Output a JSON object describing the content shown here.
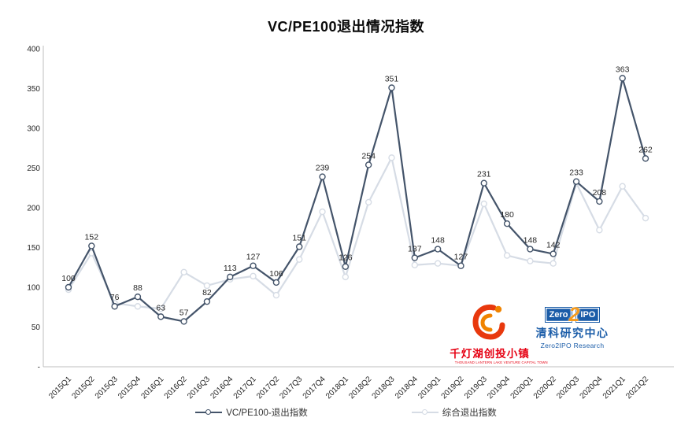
{
  "title": "VC/PE100退出情况指数",
  "chart_data": {
    "type": "line",
    "title": "VC/PE100退出情况指数",
    "categories": [
      "2015Q1",
      "2015Q2",
      "2015Q3",
      "2015Q4",
      "2016Q1",
      "2016Q2",
      "2016Q3",
      "2016Q4",
      "2017Q1",
      "2017Q2",
      "2017Q3",
      "2017Q4",
      "2018Q1",
      "2018Q2",
      "2018Q3",
      "2018Q4",
      "2019Q1",
      "2019Q2",
      "2019Q3",
      "2019Q4",
      "2020Q1",
      "2020Q2",
      "2020Q3",
      "2020Q4",
      "2021Q1",
      "2021Q2"
    ],
    "series": [
      {
        "name": "VC/PE100-退出指数",
        "color": "#44546A",
        "values": [
          100,
          152,
          76,
          88,
          63,
          57,
          82,
          113,
          127,
          106,
          151,
          239,
          126,
          254,
          351,
          137,
          148,
          127,
          231,
          180,
          148,
          142,
          233,
          208,
          363,
          262
        ],
        "data_labels": true
      },
      {
        "name": "综合退出指数",
        "color": "#D6DCE5",
        "values": [
          97,
          143,
          80,
          76,
          73,
          119,
          102,
          110,
          114,
          90,
          135,
          195,
          113,
          207,
          263,
          128,
          130,
          127,
          205,
          140,
          133,
          130,
          231,
          172,
          227,
          187
        ],
        "data_labels": false
      }
    ],
    "ylim": [
      0,
      400
    ],
    "yticks": [
      {
        "v": 400,
        "label": "400"
      },
      {
        "v": 350,
        "label": "350"
      },
      {
        "v": 300,
        "label": "300"
      },
      {
        "v": 250,
        "label": "250"
      },
      {
        "v": 200,
        "label": "200"
      },
      {
        "v": 150,
        "label": "150"
      },
      {
        "v": 100,
        "label": "100"
      },
      {
        "v": 50,
        "label": "50"
      },
      {
        "v": 0,
        "label": "-"
      }
    ],
    "grid": false,
    "legend_position": "bottom",
    "axis_color": "#BFBFBF",
    "tick_color": "#262626"
  },
  "legend": {
    "items": [
      {
        "label": "VC/PE100-退出指数"
      },
      {
        "label": "综合退出指数"
      }
    ]
  },
  "logos": {
    "qiandenghu": {
      "name": "千灯湖创投小镇",
      "caption": "THOUSAND LANTERN LAKE VENTURE CAPITAL TOWN",
      "red": "#E60012",
      "orange": "#F08300"
    },
    "zero2ipo": {
      "zero": "Zero",
      "two": "2",
      "ipo": "IPO",
      "cn": "清科研究中心",
      "en": "Zero2IPO Research",
      "blue": "#1A5CA8",
      "orange": "#F59B1E"
    }
  }
}
